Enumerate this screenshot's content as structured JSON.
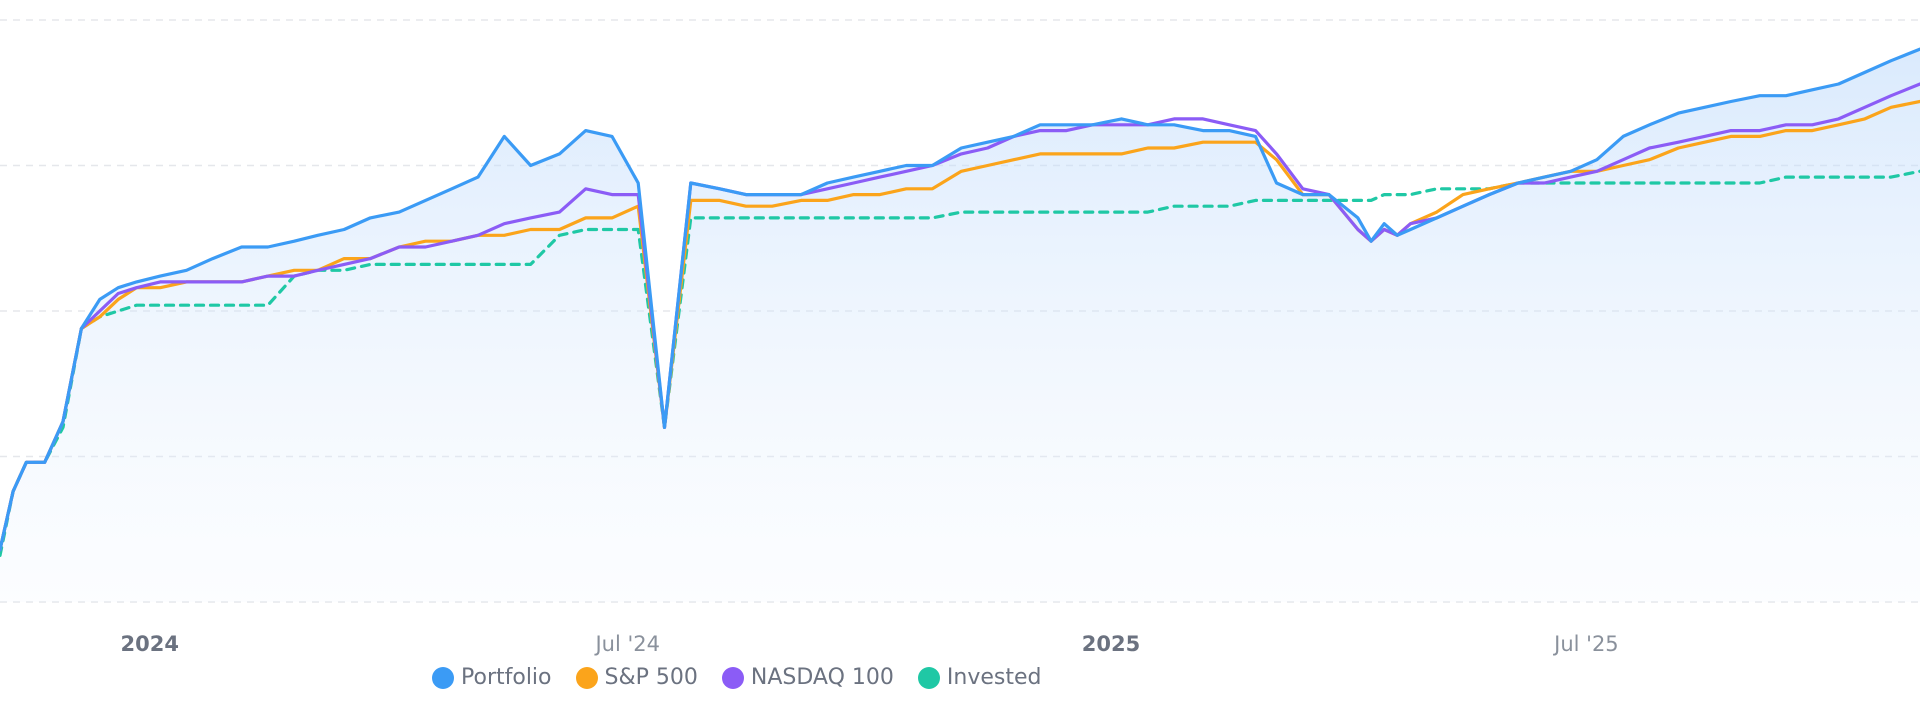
{
  "chart_data": {
    "type": "line",
    "title": "",
    "xlabel": "",
    "ylabel": "",
    "x_ticks": [
      {
        "date": "2024-01-01",
        "label": "2024",
        "bold": true
      },
      {
        "date": "2024-07-01",
        "label": "Jul '24",
        "bold": false
      },
      {
        "date": "2025-01-01",
        "label": "2025",
        "bold": true
      },
      {
        "date": "2025-07-01",
        "label": "Jul '25",
        "bold": false
      }
    ],
    "x_range": [
      "2023-11-05",
      "2025-11-05"
    ],
    "y_range": [
      0,
      100
    ],
    "y_gridlines": [
      0,
      25,
      50,
      75,
      100
    ],
    "y_axis_labels_shown": false,
    "legend_position": "bottom",
    "dates": [
      "2023-11-05",
      "2023-11-10",
      "2023-11-15",
      "2023-11-22",
      "2023-11-29",
      "2023-12-06",
      "2023-12-13",
      "2023-12-20",
      "2023-12-27",
      "2024-01-05",
      "2024-01-15",
      "2024-01-25",
      "2024-02-05",
      "2024-02-15",
      "2024-02-25",
      "2024-03-05",
      "2024-03-15",
      "2024-03-25",
      "2024-04-05",
      "2024-04-15",
      "2024-04-25",
      "2024-05-05",
      "2024-05-15",
      "2024-05-25",
      "2024-06-05",
      "2024-06-15",
      "2024-06-25",
      "2024-07-05",
      "2024-07-15",
      "2024-07-25",
      "2024-08-05",
      "2024-08-15",
      "2024-08-20",
      "2024-08-25",
      "2024-09-05",
      "2024-09-15",
      "2024-09-25",
      "2024-10-05",
      "2024-10-15",
      "2024-10-25",
      "2024-11-05",
      "2024-11-15",
      "2024-11-25",
      "2024-12-05",
      "2024-12-15",
      "2024-12-25",
      "2025-01-05",
      "2025-01-15",
      "2025-01-25",
      "2025-02-05",
      "2025-02-15",
      "2025-02-25",
      "2025-03-05",
      "2025-03-15",
      "2025-03-25",
      "2025-04-05",
      "2025-04-10",
      "2025-04-15",
      "2025-04-20",
      "2025-04-25",
      "2025-05-05",
      "2025-05-15",
      "2025-05-25",
      "2025-06-05",
      "2025-06-15",
      "2025-06-25",
      "2025-07-05",
      "2025-07-15",
      "2025-07-25",
      "2025-08-05",
      "2025-08-15",
      "2025-08-25",
      "2025-09-05",
      "2025-09-15",
      "2025-09-25",
      "2025-10-05",
      "2025-10-15",
      "2025-10-25",
      "2025-11-05"
    ],
    "series": [
      {
        "name": "Portfolio",
        "color": "#3b9bf5",
        "dashed": false,
        "values": [
          9,
          19,
          24,
          24,
          31,
          47,
          52,
          54,
          55,
          56,
          57,
          59,
          61,
          61,
          62,
          63,
          64,
          66,
          67,
          69,
          71,
          73,
          80,
          75,
          77,
          81,
          80,
          72,
          30,
          72,
          71,
          70,
          70,
          70,
          70,
          72,
          73,
          74,
          75,
          75,
          78,
          79,
          80,
          82,
          82,
          82,
          83,
          82,
          82,
          81,
          81,
          80,
          72,
          70,
          70,
          66,
          62,
          65,
          63,
          64,
          66,
          68,
          70,
          72,
          73,
          74,
          76,
          80,
          82,
          84,
          85,
          86,
          87,
          87,
          88,
          89,
          91,
          93,
          95
        ]
      },
      {
        "name": "S&P 500",
        "color": "#fba41b",
        "dashed": false,
        "values": [
          9,
          19,
          24,
          24,
          31,
          47,
          49,
          52,
          54,
          54,
          55,
          55,
          55,
          56,
          57,
          57,
          59,
          59,
          61,
          62,
          62,
          63,
          63,
          64,
          64,
          66,
          66,
          68,
          30,
          69,
          69,
          68,
          68,
          68,
          69,
          69,
          70,
          70,
          71,
          71,
          74,
          75,
          76,
          77,
          77,
          77,
          77,
          78,
          78,
          79,
          79,
          79,
          76,
          70,
          70,
          64,
          62,
          64,
          63,
          65,
          67,
          70,
          71,
          72,
          73,
          74,
          74,
          75,
          76,
          78,
          79,
          80,
          80,
          81,
          81,
          82,
          83,
          85,
          86
        ]
      },
      {
        "name": "NASDAQ 100",
        "color": "#8b5cf6",
        "dashed": false,
        "values": [
          9,
          19,
          24,
          24,
          31,
          47,
          50,
          53,
          54,
          55,
          55,
          55,
          55,
          56,
          56,
          57,
          58,
          59,
          61,
          61,
          62,
          63,
          65,
          66,
          67,
          71,
          70,
          70,
          30,
          72,
          71,
          70,
          70,
          70,
          70,
          71,
          72,
          73,
          74,
          75,
          77,
          78,
          80,
          81,
          81,
          82,
          82,
          82,
          83,
          83,
          82,
          81,
          77,
          71,
          70,
          64,
          62,
          64,
          63,
          65,
          66,
          68,
          70,
          72,
          72,
          73,
          74,
          76,
          78,
          79,
          80,
          81,
          81,
          82,
          82,
          83,
          85,
          87,
          89
        ]
      },
      {
        "name": "Invested",
        "color": "#1fc8a5",
        "dashed": true,
        "values": [
          8,
          19,
          24,
          24,
          30,
          47,
          49,
          50,
          51,
          51,
          51,
          51,
          51,
          51,
          56,
          57,
          57,
          58,
          58,
          58,
          58,
          58,
          58,
          58,
          63,
          64,
          64,
          64,
          30,
          66,
          66,
          66,
          66,
          66,
          66,
          66,
          66,
          66,
          66,
          66,
          67,
          67,
          67,
          67,
          67,
          67,
          67,
          67,
          68,
          68,
          68,
          69,
          69,
          69,
          69,
          69,
          69,
          70,
          70,
          70,
          71,
          71,
          71,
          72,
          72,
          72,
          72,
          72,
          72,
          72,
          72,
          72,
          72,
          73,
          73,
          73,
          73,
          73,
          74
        ]
      }
    ]
  }
}
